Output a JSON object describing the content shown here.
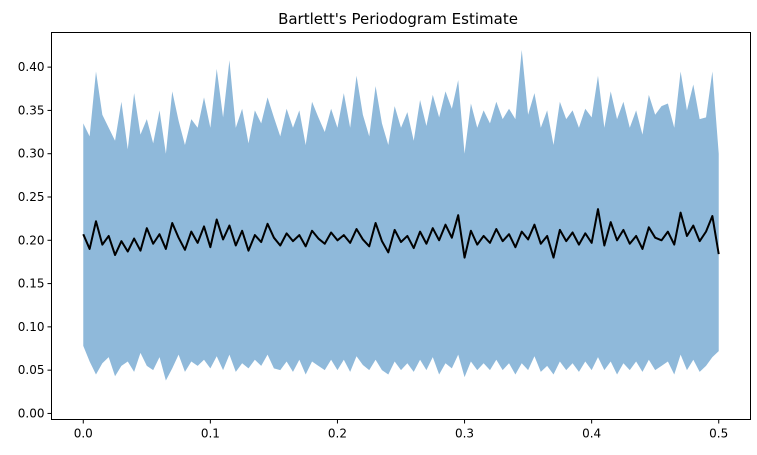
{
  "chart_data": {
    "type": "area",
    "title": "Bartlett's Periodogram Estimate",
    "xlabel": "",
    "ylabel": "",
    "xlim": [
      -0.025,
      0.525
    ],
    "ylim": [
      -0.007,
      0.44
    ],
    "x_ticks": [
      0.0,
      0.1,
      0.2,
      0.3,
      0.4,
      0.5
    ],
    "x_tick_labels": [
      "0.0",
      "0.1",
      "0.2",
      "0.3",
      "0.4",
      "0.5"
    ],
    "y_ticks": [
      0.0,
      0.05,
      0.1,
      0.15,
      0.2,
      0.25,
      0.3,
      0.35,
      0.4
    ],
    "y_tick_labels": [
      "0.00",
      "0.05",
      "0.10",
      "0.15",
      "0.20",
      "0.25",
      "0.30",
      "0.35",
      "0.40"
    ],
    "grid": false,
    "colors": {
      "band": "#8fb9da",
      "mean_line": "#000000"
    },
    "x": [
      0.0,
      0.005,
      0.01,
      0.015,
      0.02,
      0.025,
      0.03,
      0.035,
      0.04,
      0.045,
      0.05,
      0.055,
      0.06,
      0.065,
      0.07,
      0.075,
      0.08,
      0.085,
      0.09,
      0.095,
      0.1,
      0.105,
      0.11,
      0.115,
      0.12,
      0.125,
      0.13,
      0.135,
      0.14,
      0.145,
      0.15,
      0.155,
      0.16,
      0.165,
      0.17,
      0.175,
      0.18,
      0.185,
      0.19,
      0.195,
      0.2,
      0.205,
      0.21,
      0.215,
      0.22,
      0.225,
      0.23,
      0.235,
      0.24,
      0.245,
      0.25,
      0.255,
      0.26,
      0.265,
      0.27,
      0.275,
      0.28,
      0.285,
      0.29,
      0.295,
      0.3,
      0.305,
      0.31,
      0.315,
      0.32,
      0.325,
      0.33,
      0.335,
      0.34,
      0.345,
      0.35,
      0.355,
      0.36,
      0.365,
      0.37,
      0.375,
      0.38,
      0.385,
      0.39,
      0.395,
      0.4,
      0.405,
      0.41,
      0.415,
      0.42,
      0.425,
      0.43,
      0.435,
      0.44,
      0.445,
      0.45,
      0.455,
      0.46,
      0.465,
      0.47,
      0.475,
      0.48,
      0.485,
      0.49,
      0.495,
      0.5
    ],
    "series": [
      {
        "role": "mean",
        "values": [
          0.207,
          0.19,
          0.222,
          0.195,
          0.205,
          0.183,
          0.199,
          0.187,
          0.202,
          0.188,
          0.214,
          0.196,
          0.207,
          0.19,
          0.22,
          0.203,
          0.189,
          0.21,
          0.197,
          0.216,
          0.192,
          0.224,
          0.201,
          0.217,
          0.194,
          0.211,
          0.188,
          0.206,
          0.198,
          0.219,
          0.203,
          0.194,
          0.208,
          0.199,
          0.206,
          0.193,
          0.211,
          0.202,
          0.196,
          0.209,
          0.2,
          0.206,
          0.197,
          0.213,
          0.201,
          0.193,
          0.22,
          0.199,
          0.186,
          0.212,
          0.198,
          0.205,
          0.191,
          0.21,
          0.196,
          0.214,
          0.2,
          0.218,
          0.203,
          0.229,
          0.18,
          0.211,
          0.195,
          0.205,
          0.197,
          0.213,
          0.199,
          0.207,
          0.192,
          0.21,
          0.201,
          0.218,
          0.196,
          0.205,
          0.18,
          0.212,
          0.199,
          0.209,
          0.195,
          0.208,
          0.197,
          0.236,
          0.194,
          0.221,
          0.2,
          0.212,
          0.196,
          0.205,
          0.19,
          0.215,
          0.203,
          0.2,
          0.21,
          0.195,
          0.232,
          0.205,
          0.217,
          0.199,
          0.21,
          0.228,
          0.184
        ]
      },
      {
        "role": "upper",
        "values": [
          0.335,
          0.32,
          0.395,
          0.345,
          0.33,
          0.315,
          0.36,
          0.305,
          0.37,
          0.322,
          0.34,
          0.312,
          0.35,
          0.3,
          0.372,
          0.338,
          0.31,
          0.34,
          0.33,
          0.365,
          0.33,
          0.398,
          0.342,
          0.408,
          0.33,
          0.352,
          0.312,
          0.35,
          0.335,
          0.365,
          0.342,
          0.32,
          0.352,
          0.33,
          0.35,
          0.31,
          0.36,
          0.342,
          0.325,
          0.352,
          0.33,
          0.37,
          0.33,
          0.39,
          0.345,
          0.32,
          0.378,
          0.335,
          0.31,
          0.355,
          0.33,
          0.348,
          0.315,
          0.362,
          0.332,
          0.368,
          0.342,
          0.372,
          0.352,
          0.385,
          0.3,
          0.358,
          0.33,
          0.35,
          0.335,
          0.36,
          0.34,
          0.352,
          0.34,
          0.42,
          0.345,
          0.37,
          0.33,
          0.35,
          0.31,
          0.36,
          0.34,
          0.35,
          0.33,
          0.352,
          0.342,
          0.39,
          0.33,
          0.372,
          0.34,
          0.36,
          0.33,
          0.35,
          0.322,
          0.368,
          0.345,
          0.355,
          0.358,
          0.33,
          0.395,
          0.35,
          0.38,
          0.34,
          0.342,
          0.395,
          0.3
        ]
      },
      {
        "role": "lower",
        "values": [
          0.078,
          0.06,
          0.045,
          0.058,
          0.065,
          0.043,
          0.055,
          0.06,
          0.048,
          0.07,
          0.055,
          0.05,
          0.065,
          0.038,
          0.052,
          0.068,
          0.048,
          0.06,
          0.055,
          0.062,
          0.052,
          0.066,
          0.05,
          0.068,
          0.048,
          0.058,
          0.052,
          0.062,
          0.055,
          0.068,
          0.052,
          0.05,
          0.06,
          0.048,
          0.062,
          0.045,
          0.06,
          0.055,
          0.05,
          0.062,
          0.05,
          0.062,
          0.048,
          0.066,
          0.056,
          0.05,
          0.062,
          0.05,
          0.045,
          0.06,
          0.05,
          0.058,
          0.048,
          0.062,
          0.05,
          0.065,
          0.045,
          0.058,
          0.052,
          0.068,
          0.042,
          0.06,
          0.05,
          0.058,
          0.05,
          0.062,
          0.05,
          0.058,
          0.045,
          0.058,
          0.05,
          0.066,
          0.048,
          0.055,
          0.045,
          0.06,
          0.05,
          0.058,
          0.048,
          0.06,
          0.05,
          0.065,
          0.05,
          0.06,
          0.045,
          0.058,
          0.05,
          0.06,
          0.048,
          0.062,
          0.05,
          0.055,
          0.06,
          0.045,
          0.068,
          0.05,
          0.062,
          0.048,
          0.055,
          0.065,
          0.072
        ]
      }
    ]
  }
}
